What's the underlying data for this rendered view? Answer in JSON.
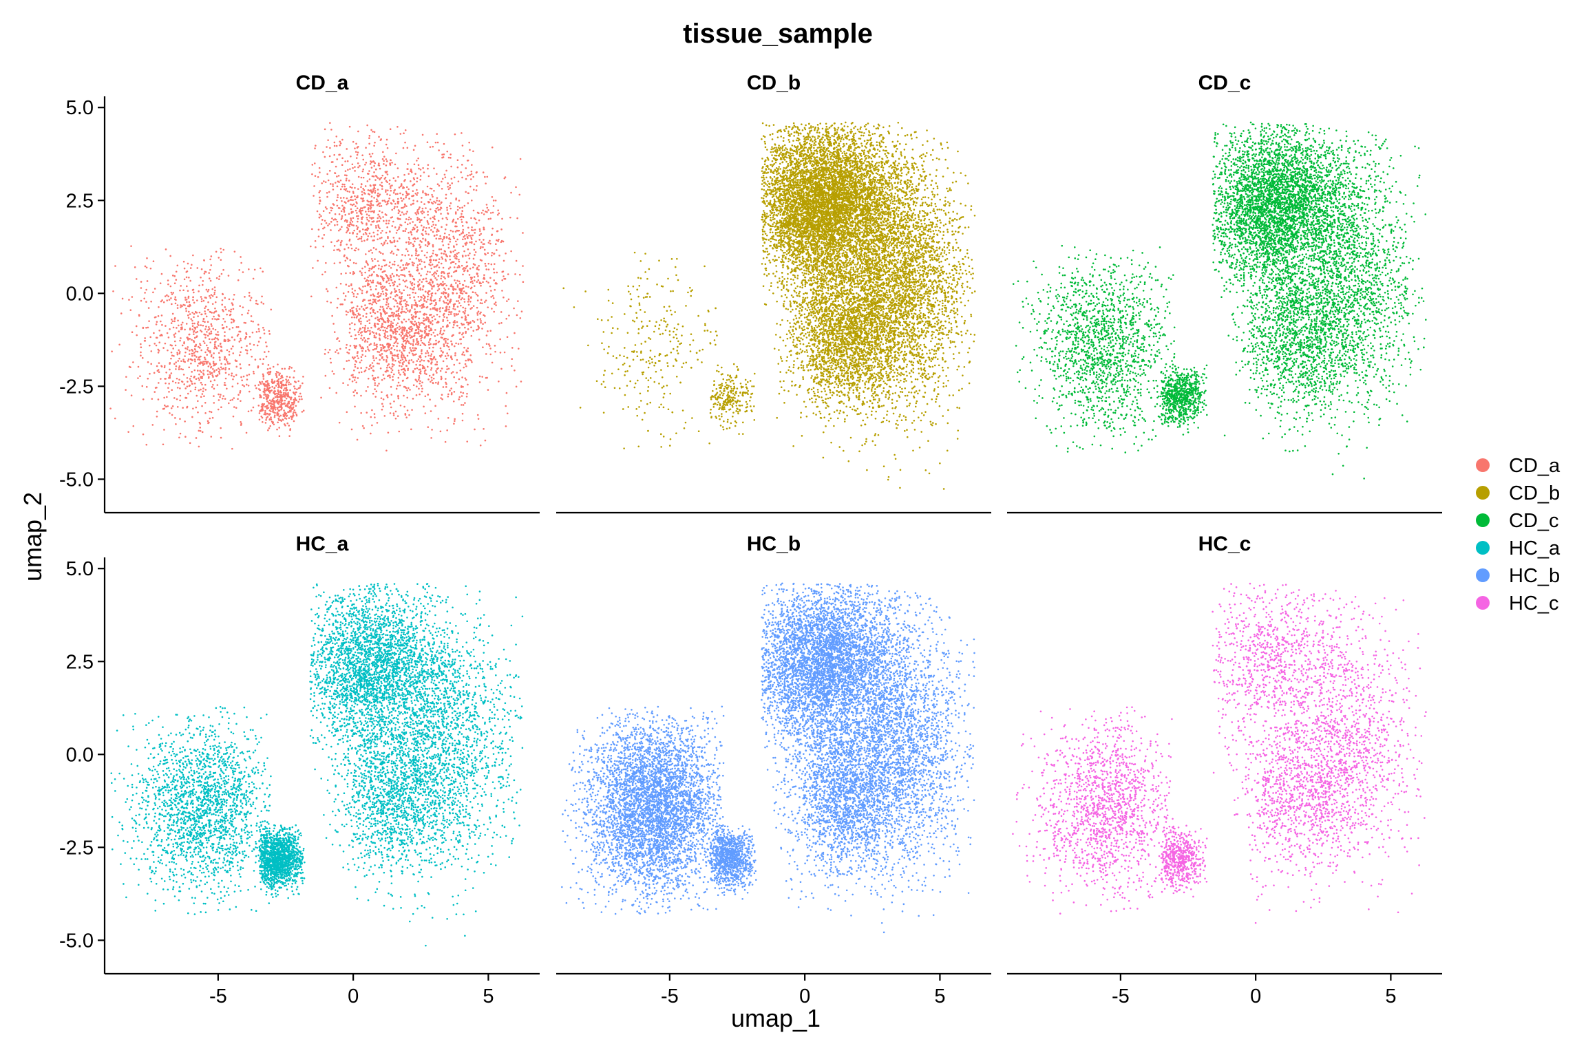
{
  "chart_data": {
    "type": "scatter",
    "title": "tissue_sample",
    "xlabel": "umap_1",
    "ylabel": "umap_2",
    "xlim": [
      -9.2,
      6.9
    ],
    "ylim": [
      -5.9,
      5.3
    ],
    "x_ticks": [
      {
        "value": -5,
        "label": "-5"
      },
      {
        "value": 0,
        "label": "0"
      },
      {
        "value": 5,
        "label": "5"
      }
    ],
    "y_ticks": [
      {
        "value": 5.0,
        "label": "5.0"
      },
      {
        "value": 2.5,
        "label": "2.5"
      },
      {
        "value": 0.0,
        "label": "0.0"
      },
      {
        "value": -2.5,
        "label": "-2.5"
      },
      {
        "value": -5.0,
        "label": "-5.0"
      }
    ],
    "grid": false,
    "legend_position": "right",
    "facets": [
      {
        "name": "CD_a",
        "color": "#F8766D",
        "point_count": 4500,
        "weights": [
          0.2,
          0.1,
          0.2,
          0.25,
          0.25
        ],
        "extra_points": []
      },
      {
        "name": "CD_b",
        "color": "#B79F00",
        "point_count": 13000,
        "weights": [
          0.02,
          0.02,
          0.52,
          0.2,
          0.24
        ],
        "extra_points": [
          [
            -6.2,
            0.1
          ],
          [
            -3.6,
            -1.0
          ],
          [
            -4.0,
            -1.6
          ],
          [
            -4.6,
            -2.4
          ],
          [
            -5.8,
            -3.7
          ],
          [
            -5.2,
            -2.7
          ],
          [
            -4.2,
            -2.0
          ],
          [
            -3.3,
            -0.4
          ],
          [
            -5.9,
            -1.3
          ],
          [
            -4.9,
            -3.2
          ]
        ]
      },
      {
        "name": "CD_c",
        "color": "#00BA38",
        "point_count": 9000,
        "weights": [
          0.16,
          0.08,
          0.44,
          0.16,
          0.16
        ],
        "extra_points": []
      },
      {
        "name": "HC_a",
        "color": "#00BFC4",
        "point_count": 9000,
        "weights": [
          0.2,
          0.15,
          0.33,
          0.16,
          0.16
        ],
        "extra_points": []
      },
      {
        "name": "HC_b",
        "color": "#619CFF",
        "point_count": 14000,
        "weights": [
          0.3,
          0.07,
          0.33,
          0.15,
          0.15
        ],
        "extra_points": []
      },
      {
        "name": "HC_c",
        "color": "#F564E3",
        "point_count": 4800,
        "weights": [
          0.28,
          0.12,
          0.2,
          0.2,
          0.2
        ],
        "extra_points": []
      }
    ]
  }
}
